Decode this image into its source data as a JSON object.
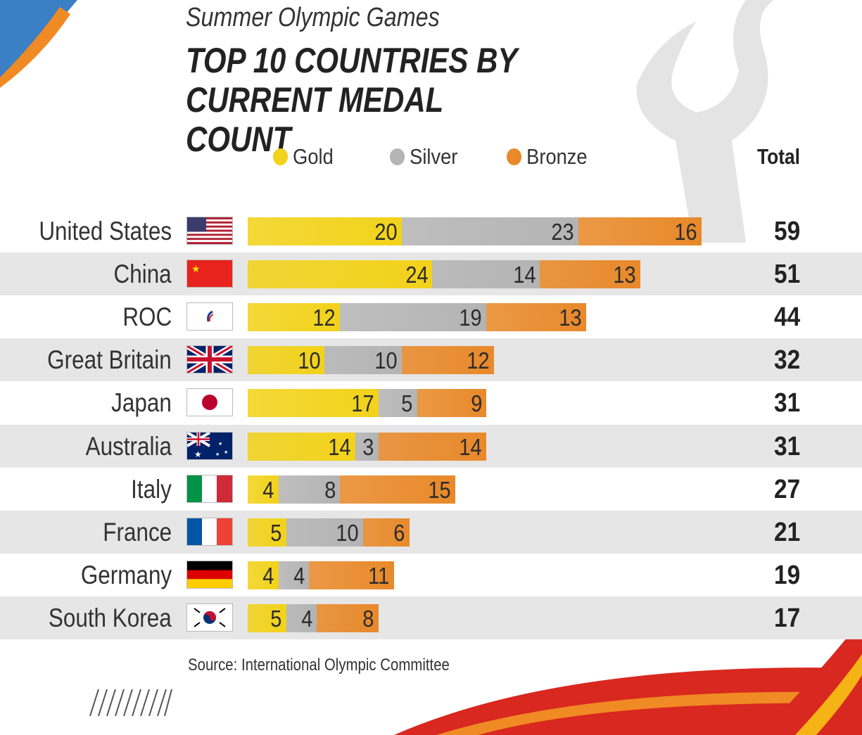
{
  "chart_data": {
    "type": "bar",
    "orientation": "horizontal",
    "stacked": true,
    "subtitle": "Summer Olympic Games",
    "title": "TOP 10 COUNTRIES BY CURRENT MEDAL COUNT",
    "total_header": "Total",
    "categories": [
      "United States",
      "China",
      "ROC",
      "Great Britain",
      "Japan",
      "Australia",
      "Italy",
      "France",
      "Germany",
      "South Korea"
    ],
    "series": [
      {
        "name": "Gold",
        "color": "#f2d21a",
        "values": [
          20,
          24,
          12,
          10,
          17,
          14,
          4,
          5,
          4,
          5
        ]
      },
      {
        "name": "Silver",
        "color": "#b4b4b4",
        "values": [
          23,
          14,
          19,
          10,
          5,
          3,
          8,
          10,
          4,
          4
        ]
      },
      {
        "name": "Bronze",
        "color": "#e8892a",
        "values": [
          16,
          13,
          13,
          12,
          9,
          14,
          15,
          6,
          11,
          8
        ]
      }
    ],
    "totals": [
      59,
      51,
      44,
      32,
      31,
      31,
      27,
      21,
      19,
      17
    ],
    "xlim": [
      0,
      59
    ],
    "source": "Source: International Olympic Committee"
  }
}
